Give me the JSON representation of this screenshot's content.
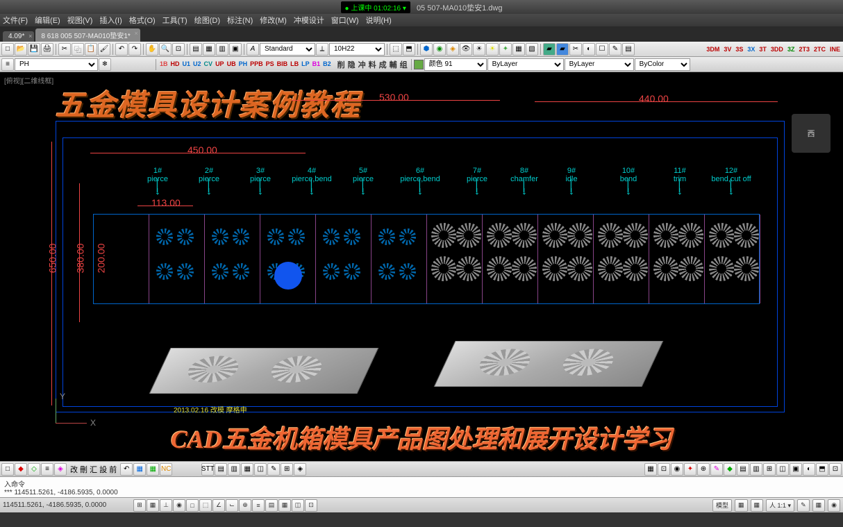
{
  "title": {
    "timer_label": "● 上课中 01:02:16 ▾",
    "filename": "05 507-MA010垫安1.dwg"
  },
  "menu": [
    "文件(F)",
    "编辑(E)",
    "视图(V)",
    "插入(I)",
    "格式(O)",
    "工具(T)",
    "绘图(D)",
    "标注(N)",
    "修改(M)",
    "冲模设计",
    "窗口(W)",
    "说明(H)"
  ],
  "tabs": [
    {
      "label": "4.09*",
      "active": false
    },
    {
      "label": "8 618 005 507-MA010垫安1*",
      "active": true
    }
  ],
  "toolbar1": {
    "style_select": "Standard",
    "dim_select": "10H22"
  },
  "indicators": [
    {
      "t": "3DM",
      "c": "#b00"
    },
    {
      "t": "3V",
      "c": "#b00"
    },
    {
      "t": "3S",
      "c": "#b00"
    },
    {
      "t": "3X",
      "c": "#06c"
    },
    {
      "t": "3T",
      "c": "#b00"
    },
    {
      "t": "3DD",
      "c": "#b00"
    },
    {
      "t": "3Z",
      "c": "#080"
    },
    {
      "t": "2T3",
      "c": "#b00"
    },
    {
      "t": "2TC",
      "c": "#b00"
    },
    {
      "t": "INE",
      "c": "#b00"
    }
  ],
  "toolbar2": {
    "layer_combo": "PH",
    "layer_btns": [
      "1B",
      "HD",
      "U1",
      "U2",
      "CV",
      "UP",
      "UB",
      "PH",
      "PPB",
      "PS",
      "BIB",
      "LB",
      "LP",
      "B1",
      "B2"
    ],
    "layer_btns2": [
      "削",
      "隐",
      "冲",
      "料",
      "成",
      "輔",
      "组"
    ],
    "color_label": "颜色 91",
    "linetype": "ByLayer",
    "lineweight": "ByLayer",
    "plotstyle": "ByColor"
  },
  "canvas": {
    "view_label": "[俯视][二维线框]",
    "title_overlay": "五金模具设计案例教程",
    "bottom_overlay": "CAD五金机箱模具产品图处理和展开设计学习",
    "viewcube": "西",
    "dims": {
      "d530": "530.00",
      "d440": "440.00",
      "d450": "450.00",
      "d113": "113.00",
      "d650": "650.00",
      "d380": "380.00",
      "d200": "200.00"
    },
    "stations": [
      {
        "n": "1#",
        "op": "pierce"
      },
      {
        "n": "2#",
        "op": "pierce"
      },
      {
        "n": "3#",
        "op": "pierce"
      },
      {
        "n": "4#",
        "op": "pierce,bend"
      },
      {
        "n": "5#",
        "op": "pierce"
      },
      {
        "n": "6#",
        "op": "pierce,bend"
      },
      {
        "n": "7#",
        "op": "pierce"
      },
      {
        "n": "8#",
        "op": "chamfer"
      },
      {
        "n": "9#",
        "op": "idle"
      },
      {
        "n": "10#",
        "op": "bend"
      },
      {
        "n": "11#",
        "op": "trim"
      },
      {
        "n": "12#",
        "op": "bend,cut off"
      }
    ],
    "date": "2013.02.16  改模 摩格申",
    "axis_y": "Y",
    "axis_x": "X"
  },
  "command": {
    "line1": "入命令",
    "line2": "***  114511.5261, -4186.5935, 0.0000"
  },
  "status": {
    "coords": "114511.5261, -4186.5935, 0.0000",
    "right_items": [
      "模型",
      "▦",
      "▦",
      "人 1:1 ▾",
      "✎",
      "▦",
      "◉"
    ]
  },
  "colors": {
    "accent": "#e55a2b",
    "cyan": "#00cccc",
    "red_dim": "#e04444",
    "blue": "#0066cc",
    "magenta": "#d040d0",
    "yellow": "#dddd44"
  }
}
